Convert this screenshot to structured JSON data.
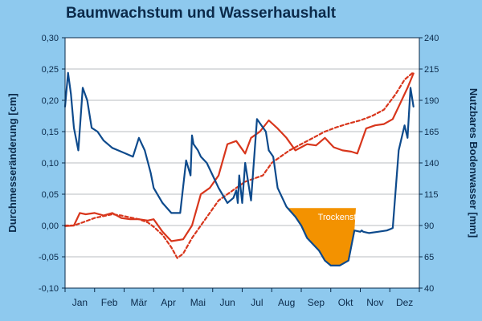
{
  "chart_data": {
    "type": "line",
    "title": "Baumwachstum und Wasserhaushalt",
    "ylabel": "Durchmesseränderung [cm]",
    "y2label": "Nutzbares Bodenwasser [mm]",
    "categories": [
      "Jan",
      "Feb",
      "Mär",
      "Apr",
      "Mai",
      "Jun",
      "Jul",
      "Aug",
      "Sep",
      "Okt",
      "Nov",
      "Dez"
    ],
    "ylim": [
      -0.1,
      0.3
    ],
    "y2lim": [
      40,
      240
    ],
    "yticks": [
      "-0,10",
      "-0,05",
      "0,00",
      "0,05",
      "0,10",
      "0,15",
      "0,20",
      "0,25",
      "0,30"
    ],
    "y2ticks": [
      "40",
      "65",
      "90",
      "115",
      "140",
      "165",
      "190",
      "215",
      "240"
    ],
    "grid": true,
    "annotation": "Trockenstress",
    "colors": {
      "diameter": "#d8361c",
      "water": "#0d4a8c",
      "stress": "#f39200",
      "background": "#8ec9ee",
      "plot": "#ffffff"
    },
    "series": [
      {
        "axis": "left",
        "style": "solid",
        "x": [
          0.0,
          0.3,
          0.5,
          0.7,
          1.0,
          1.3,
          1.6,
          1.9,
          2.2,
          2.5,
          2.8,
          3.0,
          3.3,
          3.6,
          4.0,
          4.3,
          4.6,
          4.9,
          5.2,
          5.5,
          5.8,
          6.1,
          6.3,
          6.6,
          6.9,
          7.2,
          7.5,
          7.8,
          8.2,
          8.5,
          8.8,
          9.1,
          9.4,
          9.7,
          9.9,
          10.2,
          10.5,
          10.8,
          11.1,
          11.3,
          11.6,
          11.8
        ],
        "values": [
          -0.001,
          0.0,
          0.02,
          0.018,
          0.02,
          0.016,
          0.02,
          0.012,
          0.01,
          0.01,
          0.008,
          0.01,
          -0.01,
          -0.025,
          -0.022,
          0.0,
          0.05,
          0.06,
          0.08,
          0.13,
          0.135,
          0.115,
          0.14,
          0.15,
          0.168,
          0.155,
          0.14,
          0.12,
          0.13,
          0.128,
          0.14,
          0.125,
          0.12,
          0.118,
          0.115,
          0.155,
          0.16,
          0.162,
          0.17,
          0.19,
          0.22,
          0.243
        ]
      },
      {
        "axis": "left",
        "style": "dashed",
        "x": [
          0.0,
          0.3,
          0.6,
          1.0,
          1.3,
          1.6,
          1.9,
          2.2,
          2.5,
          2.8,
          3.0,
          3.3,
          3.6,
          3.8,
          4.0,
          4.3,
          4.6,
          4.9,
          5.2,
          5.5,
          5.8,
          6.1,
          6.4,
          6.7,
          7.0,
          7.3,
          7.6,
          8.0,
          8.4,
          8.8,
          9.2,
          9.6,
          10.0,
          10.4,
          10.8,
          11.2,
          11.5,
          11.8
        ],
        "values": [
          0.0,
          0.0,
          0.005,
          0.012,
          0.015,
          0.018,
          0.016,
          0.013,
          0.01,
          0.005,
          -0.002,
          -0.015,
          -0.035,
          -0.052,
          -0.045,
          -0.02,
          0.0,
          0.02,
          0.04,
          0.05,
          0.06,
          0.07,
          0.075,
          0.08,
          0.1,
          0.11,
          0.12,
          0.13,
          0.14,
          0.15,
          0.157,
          0.163,
          0.168,
          0.175,
          0.185,
          0.21,
          0.233,
          0.245
        ]
      },
      {
        "axis": "right",
        "style": "solid",
        "x": [
          0.0,
          0.1,
          0.2,
          0.3,
          0.45,
          0.6,
          0.75,
          0.9,
          1.1,
          1.3,
          1.6,
          1.8,
          2.0,
          2.3,
          2.5,
          2.7,
          2.9,
          3.0,
          3.3,
          3.6,
          3.9,
          4.1,
          4.25,
          4.3,
          4.35,
          4.5,
          4.6,
          4.8,
          5.0,
          5.2,
          5.5,
          5.7,
          5.8,
          5.85,
          5.9,
          6.0,
          6.1,
          6.3,
          6.5,
          6.8,
          6.9,
          7.05,
          7.2,
          7.5,
          7.8,
          8.0,
          8.2,
          8.4,
          8.6,
          8.8,
          9.0,
          9.3,
          9.6,
          9.8,
          10.0,
          10.05,
          10.1,
          10.3,
          10.6,
          10.9,
          11.0,
          11.1,
          11.3,
          11.5,
          11.6,
          11.7,
          11.8
        ],
        "values": [
          185,
          212,
          195,
          168,
          150,
          200,
          190,
          168,
          165,
          158,
          152,
          150,
          148,
          145,
          160,
          150,
          132,
          120,
          108,
          100,
          100,
          142,
          130,
          162,
          155,
          150,
          145,
          140,
          130,
          120,
          108,
          112,
          118,
          108,
          130,
          108,
          140,
          110,
          175,
          165,
          150,
          145,
          120,
          105,
          97,
          90,
          80,
          75,
          70,
          62,
          58,
          58,
          62,
          86,
          85,
          86,
          85,
          84,
          85,
          86,
          87,
          88,
          150,
          170,
          160,
          200,
          185
        ]
      }
    ]
  }
}
